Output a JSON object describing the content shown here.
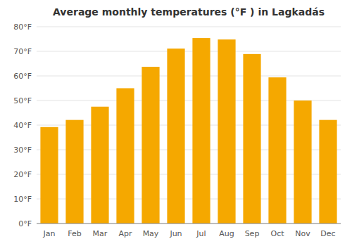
{
  "chart_data": {
    "type": "bar",
    "title": "Average monthly temperatures (°F ) in Lagkadás",
    "categories": [
      "Jan",
      "Feb",
      "Mar",
      "Apr",
      "May",
      "Jun",
      "Jul",
      "Aug",
      "Sep",
      "Oct",
      "Nov",
      "Dec"
    ],
    "values": [
      39.2,
      42.1,
      47.5,
      55.0,
      63.7,
      71.1,
      75.4,
      74.8,
      68.9,
      59.4,
      50.0,
      42.1
    ],
    "color": "#F5A800",
    "ylim": [
      0,
      80
    ],
    "yticks": [
      {
        "value": 0,
        "label": "0°F"
      },
      {
        "value": 10,
        "label": "10°F"
      },
      {
        "value": 20,
        "label": "20°F"
      },
      {
        "value": 30,
        "label": "30°F"
      },
      {
        "value": 40,
        "label": "40°F"
      },
      {
        "value": 50,
        "label": "50°F"
      },
      {
        "value": 60,
        "label": "60°F"
      },
      {
        "value": 70,
        "label": "70°F"
      },
      {
        "value": 80,
        "label": "80°F"
      }
    ],
    "grid": true
  }
}
